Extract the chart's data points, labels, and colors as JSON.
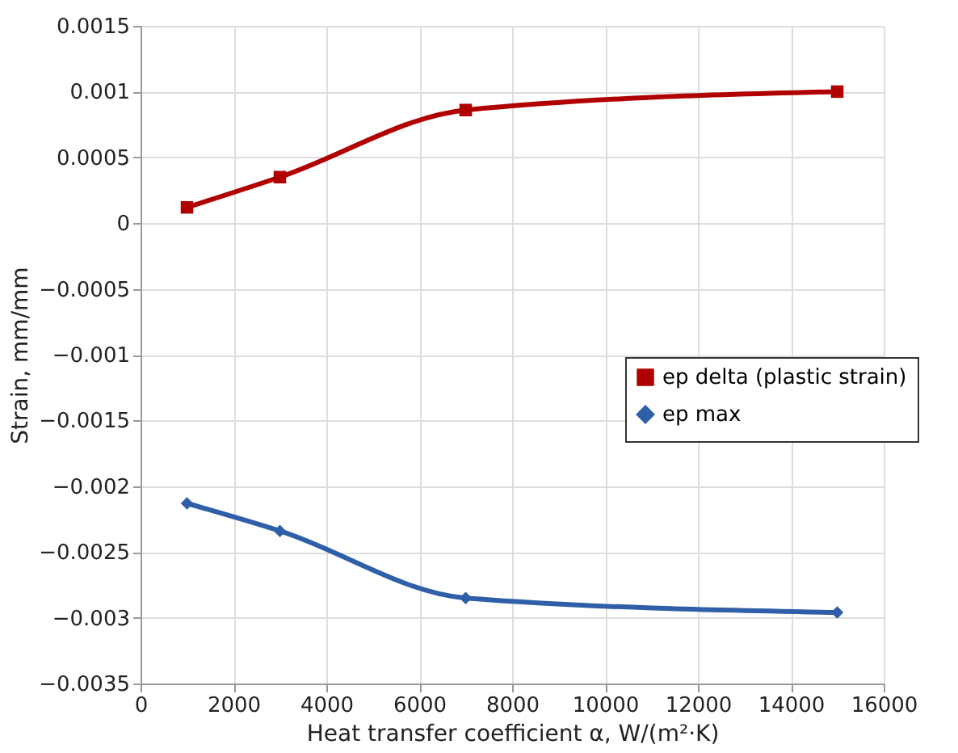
{
  "chart_data": {
    "type": "line",
    "xlabel": "Heat transfer coefficient  α, W/(m²·K)",
    "ylabel": "Strain, mm/mm",
    "x": [
      1000,
      3000,
      7000,
      15000
    ],
    "series": [
      {
        "name": "ep delta (plastic strain)",
        "color": "#b00000",
        "marker": "square",
        "values": [
          0.00012,
          0.00035,
          0.00086,
          0.001
        ]
      },
      {
        "name": "ep max",
        "color": "#2e5fa8",
        "marker": "diamond",
        "values": [
          -0.00213,
          -0.00234,
          -0.00285,
          -0.00296
        ]
      }
    ],
    "xlim": [
      0,
      16000
    ],
    "xticks": [
      0,
      2000,
      4000,
      6000,
      8000,
      10000,
      12000,
      14000,
      16000
    ],
    "ylim": [
      -0.0035,
      0.0015
    ],
    "yticks": [
      -0.0035,
      -0.003,
      -0.0025,
      -0.002,
      -0.0015,
      -0.001,
      -0.0005,
      0,
      0.0005,
      0.001,
      0.0015
    ],
    "grid": true,
    "legend": "right",
    "line_style": "solid"
  }
}
